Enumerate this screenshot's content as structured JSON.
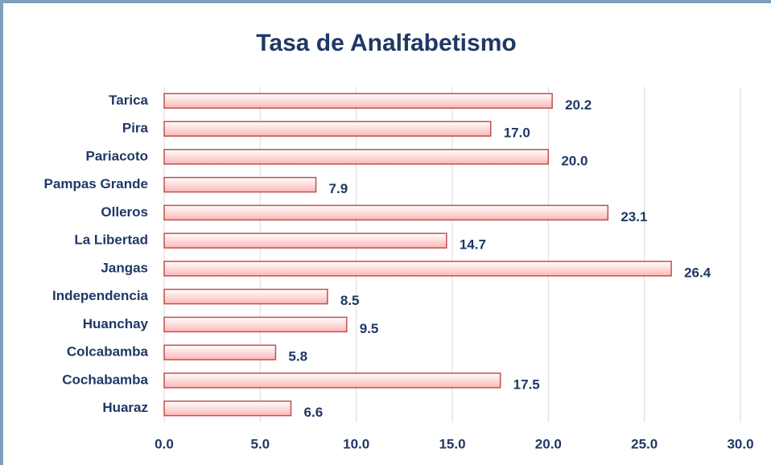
{
  "chart_data": {
    "type": "bar",
    "orientation": "horizontal",
    "title": "Tasa de Analfabetismo",
    "categories": [
      "Tarica",
      "Pira",
      "Pariacoto",
      "Pampas Grande",
      "Olleros",
      "La Libertad",
      "Jangas",
      "Independencia",
      "Huanchay",
      "Colcabamba",
      "Cochabamba",
      "Huaraz"
    ],
    "values": [
      20.2,
      17.0,
      20.0,
      7.9,
      23.1,
      14.7,
      26.4,
      8.5,
      9.5,
      5.8,
      17.5,
      6.6
    ],
    "value_labels": [
      "20.2",
      "17.0",
      "20.0",
      "7.9",
      "23.1",
      "14.7",
      "26.4",
      "8.5",
      "9.5",
      "5.8",
      "17.5",
      "6.6"
    ],
    "color": "#fcb8b8",
    "edgecolor": "#c0504d",
    "xlim": [
      0,
      30
    ],
    "xticks": [
      {
        "value": 0,
        "label": "0.0"
      },
      {
        "value": 5,
        "label": "5.0"
      },
      {
        "value": 10,
        "label": "10.0"
      },
      {
        "value": 15,
        "label": "15.0"
      },
      {
        "value": 20,
        "label": "20.0"
      },
      {
        "value": 25,
        "label": "25.0"
      },
      {
        "value": 30,
        "label": "30.0"
      }
    ],
    "grid": true
  }
}
